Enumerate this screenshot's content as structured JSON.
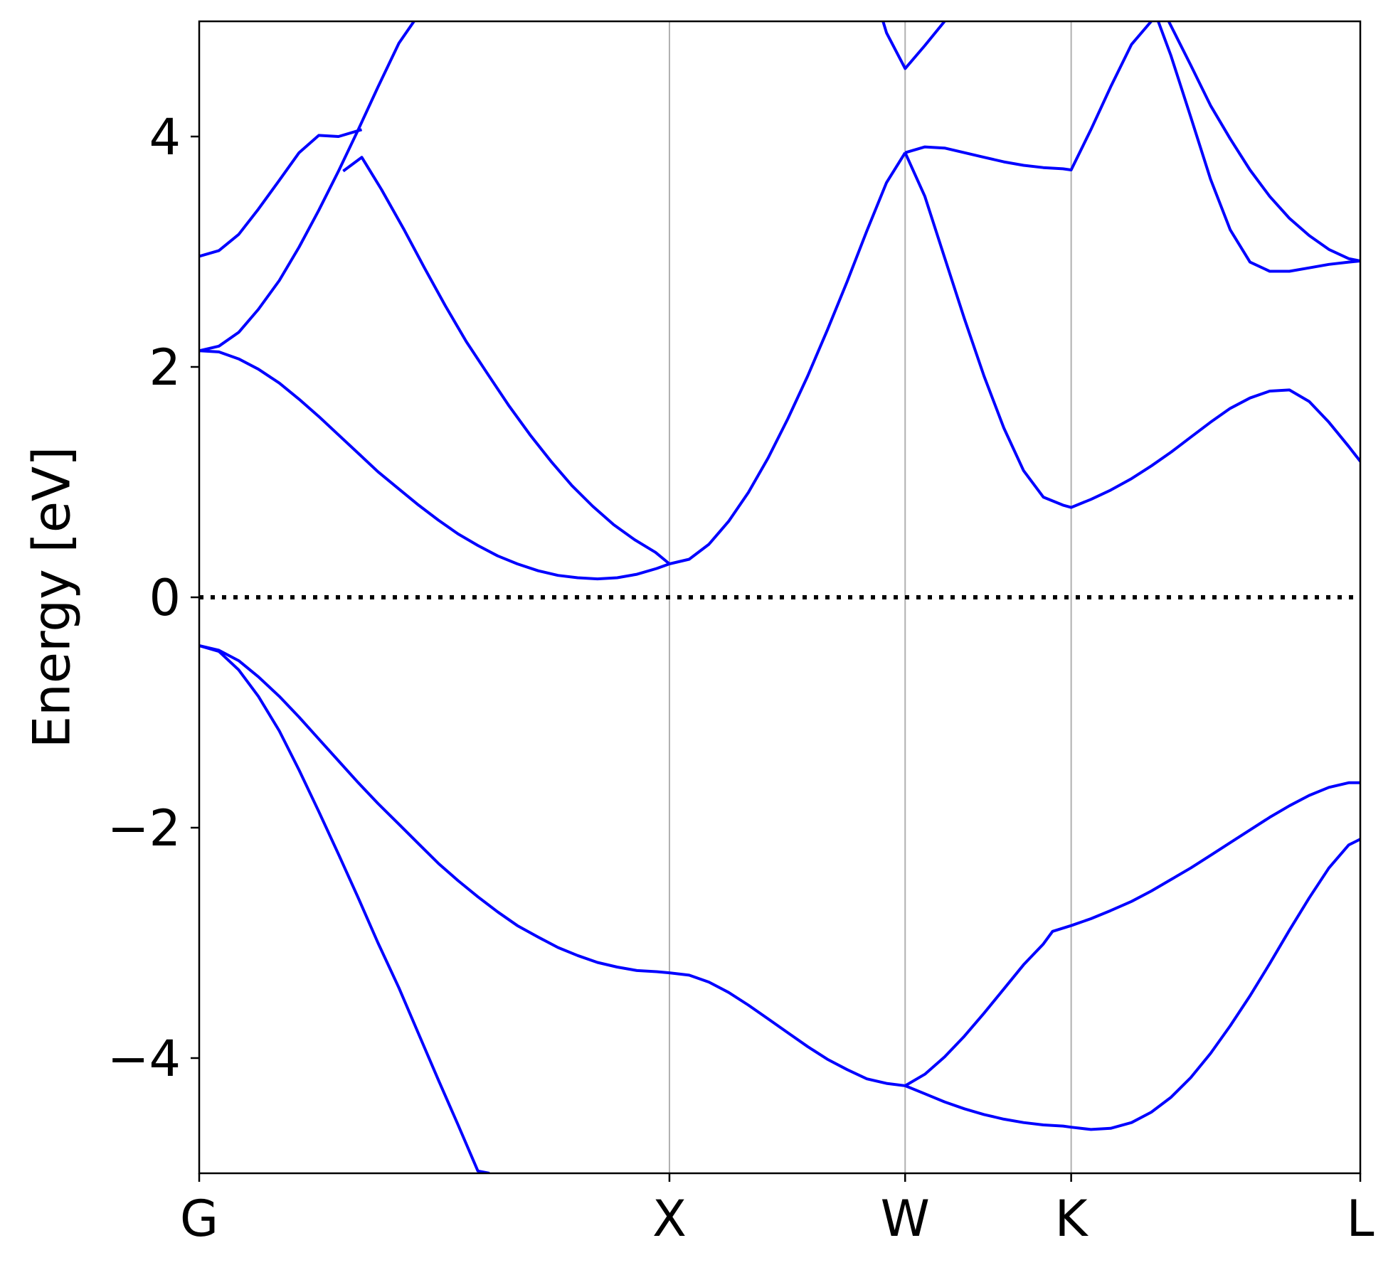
{
  "chart_data": {
    "type": "line",
    "title": "",
    "xlabel": "",
    "ylabel": "Energy [eV]",
    "ylim": [
      -5,
      5
    ],
    "xlim": [
      0,
      1
    ],
    "yticks": [
      -4,
      -2,
      0,
      2,
      4
    ],
    "ytick_labels": [
      "−4",
      "−2",
      "0",
      "2",
      "4"
    ],
    "kpoints": [
      {
        "label": "G",
        "x": 0.0
      },
      {
        "label": "X",
        "x": 0.405
      },
      {
        "label": "W",
        "x": 0.608
      },
      {
        "label": "K",
        "x": 0.751
      },
      {
        "label": "L",
        "x": 1.0
      }
    ],
    "fermi_level": 0,
    "grid": "vertical lines at high-symmetry points",
    "colors": {
      "bands": "#0000ff",
      "fermi": "#000000",
      "grid": "#b0b0b0",
      "axes": "#000000"
    },
    "series": [
      {
        "points": [
          [
            0.0,
            -0.42
          ],
          [
            0.017,
            -0.47
          ],
          [
            0.034,
            -0.63
          ],
          [
            0.051,
            -0.86
          ],
          [
            0.069,
            -1.16
          ],
          [
            0.086,
            -1.5
          ],
          [
            0.103,
            -1.86
          ],
          [
            0.12,
            -2.23
          ],
          [
            0.137,
            -2.61
          ],
          [
            0.154,
            -3.0
          ],
          [
            0.172,
            -3.39
          ],
          [
            0.189,
            -3.79
          ],
          [
            0.206,
            -4.19
          ],
          [
            0.223,
            -4.58
          ],
          [
            0.24,
            -4.98
          ],
          [
            0.25,
            -5.0
          ]
        ]
      },
      {
        "points": [
          [
            0.0,
            -0.42
          ],
          [
            0.017,
            -0.46
          ],
          [
            0.034,
            -0.55
          ],
          [
            0.051,
            -0.69
          ],
          [
            0.069,
            -0.86
          ],
          [
            0.086,
            -1.04
          ],
          [
            0.103,
            -1.23
          ],
          [
            0.12,
            -1.42
          ],
          [
            0.137,
            -1.61
          ],
          [
            0.154,
            -1.79
          ],
          [
            0.172,
            -1.97
          ],
          [
            0.189,
            -2.14
          ],
          [
            0.206,
            -2.31
          ],
          [
            0.223,
            -2.46
          ],
          [
            0.24,
            -2.6
          ],
          [
            0.257,
            -2.73
          ],
          [
            0.274,
            -2.85
          ],
          [
            0.292,
            -2.95
          ],
          [
            0.309,
            -3.04
          ],
          [
            0.326,
            -3.11
          ],
          [
            0.343,
            -3.17
          ],
          [
            0.36,
            -3.21
          ],
          [
            0.377,
            -3.24
          ],
          [
            0.394,
            -3.25
          ],
          [
            0.405,
            -3.26
          ],
          [
            0.422,
            -3.28
          ],
          [
            0.439,
            -3.34
          ],
          [
            0.456,
            -3.43
          ],
          [
            0.473,
            -3.54
          ],
          [
            0.49,
            -3.66
          ],
          [
            0.507,
            -3.78
          ],
          [
            0.524,
            -3.9
          ],
          [
            0.541,
            -4.01
          ],
          [
            0.558,
            -4.1
          ],
          [
            0.575,
            -4.18
          ],
          [
            0.592,
            -4.22
          ],
          [
            0.608,
            -4.24
          ]
        ]
      },
      {
        "points": [
          [
            0.608,
            -4.24
          ],
          [
            0.625,
            -4.31
          ],
          [
            0.642,
            -4.38
          ],
          [
            0.659,
            -4.44
          ],
          [
            0.676,
            -4.49
          ],
          [
            0.693,
            -4.53
          ],
          [
            0.71,
            -4.56
          ],
          [
            0.727,
            -4.58
          ],
          [
            0.744,
            -4.59
          ],
          [
            0.751,
            -4.6
          ],
          [
            0.768,
            -4.62
          ],
          [
            0.785,
            -4.61
          ],
          [
            0.803,
            -4.56
          ],
          [
            0.82,
            -4.47
          ],
          [
            0.837,
            -4.34
          ],
          [
            0.854,
            -4.17
          ],
          [
            0.871,
            -3.96
          ],
          [
            0.888,
            -3.72
          ],
          [
            0.905,
            -3.46
          ],
          [
            0.922,
            -3.18
          ],
          [
            0.939,
            -2.89
          ],
          [
            0.956,
            -2.61
          ],
          [
            0.973,
            -2.35
          ],
          [
            0.99,
            -2.15
          ],
          [
            1.0,
            -2.1
          ]
        ]
      },
      {
        "points": [
          [
            0.608,
            -4.24
          ],
          [
            0.625,
            -4.14
          ],
          [
            0.642,
            -3.99
          ],
          [
            0.659,
            -3.81
          ],
          [
            0.676,
            -3.61
          ],
          [
            0.693,
            -3.4
          ],
          [
            0.71,
            -3.19
          ],
          [
            0.727,
            -3.01
          ],
          [
            0.735,
            -2.9
          ],
          [
            0.751,
            -2.85
          ],
          [
            0.768,
            -2.79
          ],
          [
            0.785,
            -2.72
          ],
          [
            0.803,
            -2.64
          ],
          [
            0.82,
            -2.55
          ],
          [
            0.837,
            -2.45
          ],
          [
            0.854,
            -2.35
          ],
          [
            0.871,
            -2.24
          ],
          [
            0.888,
            -2.13
          ],
          [
            0.905,
            -2.02
          ],
          [
            0.922,
            -1.91
          ],
          [
            0.939,
            -1.81
          ],
          [
            0.956,
            -1.72
          ],
          [
            0.973,
            -1.65
          ],
          [
            0.99,
            -1.61
          ],
          [
            1.0,
            -1.61
          ]
        ]
      },
      {
        "points": [
          [
            0.0,
            2.14
          ],
          [
            0.017,
            2.13
          ],
          [
            0.034,
            2.07
          ],
          [
            0.051,
            1.98
          ],
          [
            0.069,
            1.86
          ],
          [
            0.086,
            1.72
          ],
          [
            0.103,
            1.57
          ],
          [
            0.12,
            1.41
          ],
          [
            0.137,
            1.25
          ],
          [
            0.154,
            1.09
          ],
          [
            0.172,
            0.94
          ],
          [
            0.189,
            0.8
          ],
          [
            0.206,
            0.67
          ],
          [
            0.223,
            0.55
          ],
          [
            0.24,
            0.45
          ],
          [
            0.257,
            0.36
          ],
          [
            0.274,
            0.29
          ],
          [
            0.292,
            0.23
          ],
          [
            0.309,
            0.19
          ],
          [
            0.326,
            0.17
          ],
          [
            0.343,
            0.16
          ],
          [
            0.36,
            0.17
          ],
          [
            0.377,
            0.2
          ],
          [
            0.394,
            0.25
          ],
          [
            0.405,
            0.29
          ]
        ]
      },
      {
        "points": [
          [
            0.0,
            2.14
          ],
          [
            0.017,
            2.18
          ],
          [
            0.034,
            2.3
          ],
          [
            0.051,
            2.5
          ],
          [
            0.069,
            2.75
          ],
          [
            0.086,
            3.04
          ],
          [
            0.103,
            3.36
          ],
          [
            0.12,
            3.7
          ],
          [
            0.137,
            4.06
          ],
          [
            0.154,
            4.43
          ],
          [
            0.172,
            4.81
          ],
          [
            0.185,
            5.0
          ]
        ]
      },
      {
        "points": [
          [
            0.0,
            2.96
          ],
          [
            0.017,
            3.01
          ],
          [
            0.034,
            3.15
          ],
          [
            0.051,
            3.37
          ],
          [
            0.069,
            3.62
          ],
          [
            0.086,
            3.86
          ],
          [
            0.103,
            4.01
          ],
          [
            0.12,
            4.0
          ],
          [
            0.14,
            4.06
          ]
        ]
      },
      {
        "points": [
          [
            0.124,
            3.7
          ],
          [
            0.14,
            3.82
          ],
          [
            0.157,
            3.54
          ],
          [
            0.176,
            3.2
          ],
          [
            0.194,
            2.86
          ],
          [
            0.212,
            2.53
          ],
          [
            0.23,
            2.22
          ],
          [
            0.249,
            1.93
          ],
          [
            0.267,
            1.66
          ],
          [
            0.285,
            1.41
          ],
          [
            0.303,
            1.18
          ],
          [
            0.321,
            0.97
          ],
          [
            0.339,
            0.79
          ],
          [
            0.357,
            0.63
          ],
          [
            0.375,
            0.5
          ],
          [
            0.393,
            0.39
          ],
          [
            0.405,
            0.29
          ],
          [
            0.422,
            0.33
          ],
          [
            0.439,
            0.46
          ],
          [
            0.456,
            0.66
          ],
          [
            0.473,
            0.91
          ],
          [
            0.49,
            1.21
          ],
          [
            0.507,
            1.55
          ],
          [
            0.524,
            1.92
          ],
          [
            0.541,
            2.32
          ],
          [
            0.558,
            2.74
          ],
          [
            0.575,
            3.18
          ],
          [
            0.592,
            3.6
          ],
          [
            0.608,
            3.86
          ]
        ]
      },
      {
        "points": [
          [
            0.608,
            3.86
          ],
          [
            0.625,
            3.48
          ],
          [
            0.642,
            2.95
          ],
          [
            0.659,
            2.42
          ],
          [
            0.676,
            1.92
          ],
          [
            0.693,
            1.47
          ],
          [
            0.71,
            1.1
          ],
          [
            0.727,
            0.87
          ],
          [
            0.744,
            0.8
          ],
          [
            0.751,
            0.78
          ],
          [
            0.768,
            0.85
          ],
          [
            0.785,
            0.93
          ],
          [
            0.803,
            1.03
          ],
          [
            0.82,
            1.14
          ],
          [
            0.837,
            1.26
          ],
          [
            0.854,
            1.39
          ],
          [
            0.871,
            1.52
          ],
          [
            0.888,
            1.64
          ],
          [
            0.905,
            1.73
          ],
          [
            0.922,
            1.79
          ],
          [
            0.939,
            1.8
          ],
          [
            0.956,
            1.7
          ],
          [
            0.973,
            1.52
          ],
          [
            0.99,
            1.31
          ],
          [
            1.0,
            1.18
          ]
        ]
      },
      {
        "points": [
          [
            0.608,
            3.86
          ],
          [
            0.625,
            3.91
          ],
          [
            0.642,
            3.9
          ],
          [
            0.659,
            3.86
          ],
          [
            0.676,
            3.82
          ],
          [
            0.693,
            3.78
          ],
          [
            0.71,
            3.75
          ],
          [
            0.727,
            3.73
          ],
          [
            0.744,
            3.72
          ],
          [
            0.751,
            3.71
          ],
          [
            0.768,
            4.06
          ],
          [
            0.785,
            4.43
          ],
          [
            0.803,
            4.8
          ],
          [
            0.82,
            5.0
          ]
        ]
      },
      {
        "points": [
          [
            0.589,
            5.0
          ],
          [
            0.592,
            4.9
          ],
          [
            0.608,
            4.59
          ],
          [
            0.625,
            4.79
          ],
          [
            0.642,
            5.0
          ]
        ]
      },
      {
        "points": [
          [
            0.826,
            5.0
          ],
          [
            0.837,
            4.7
          ],
          [
            0.854,
            4.17
          ],
          [
            0.871,
            3.63
          ],
          [
            0.888,
            3.19
          ],
          [
            0.905,
            2.91
          ],
          [
            0.922,
            2.83
          ],
          [
            0.939,
            2.83
          ],
          [
            0.956,
            2.86
          ],
          [
            0.973,
            2.89
          ],
          [
            0.99,
            2.91
          ],
          [
            1.0,
            2.92
          ]
        ]
      },
      {
        "points": [
          [
            0.835,
            5.0
          ],
          [
            0.854,
            4.62
          ],
          [
            0.871,
            4.27
          ],
          [
            0.888,
            3.98
          ],
          [
            0.905,
            3.71
          ],
          [
            0.922,
            3.48
          ],
          [
            0.939,
            3.29
          ],
          [
            0.956,
            3.14
          ],
          [
            0.973,
            3.02
          ],
          [
            0.99,
            2.94
          ],
          [
            1.0,
            2.92
          ]
        ]
      }
    ]
  }
}
